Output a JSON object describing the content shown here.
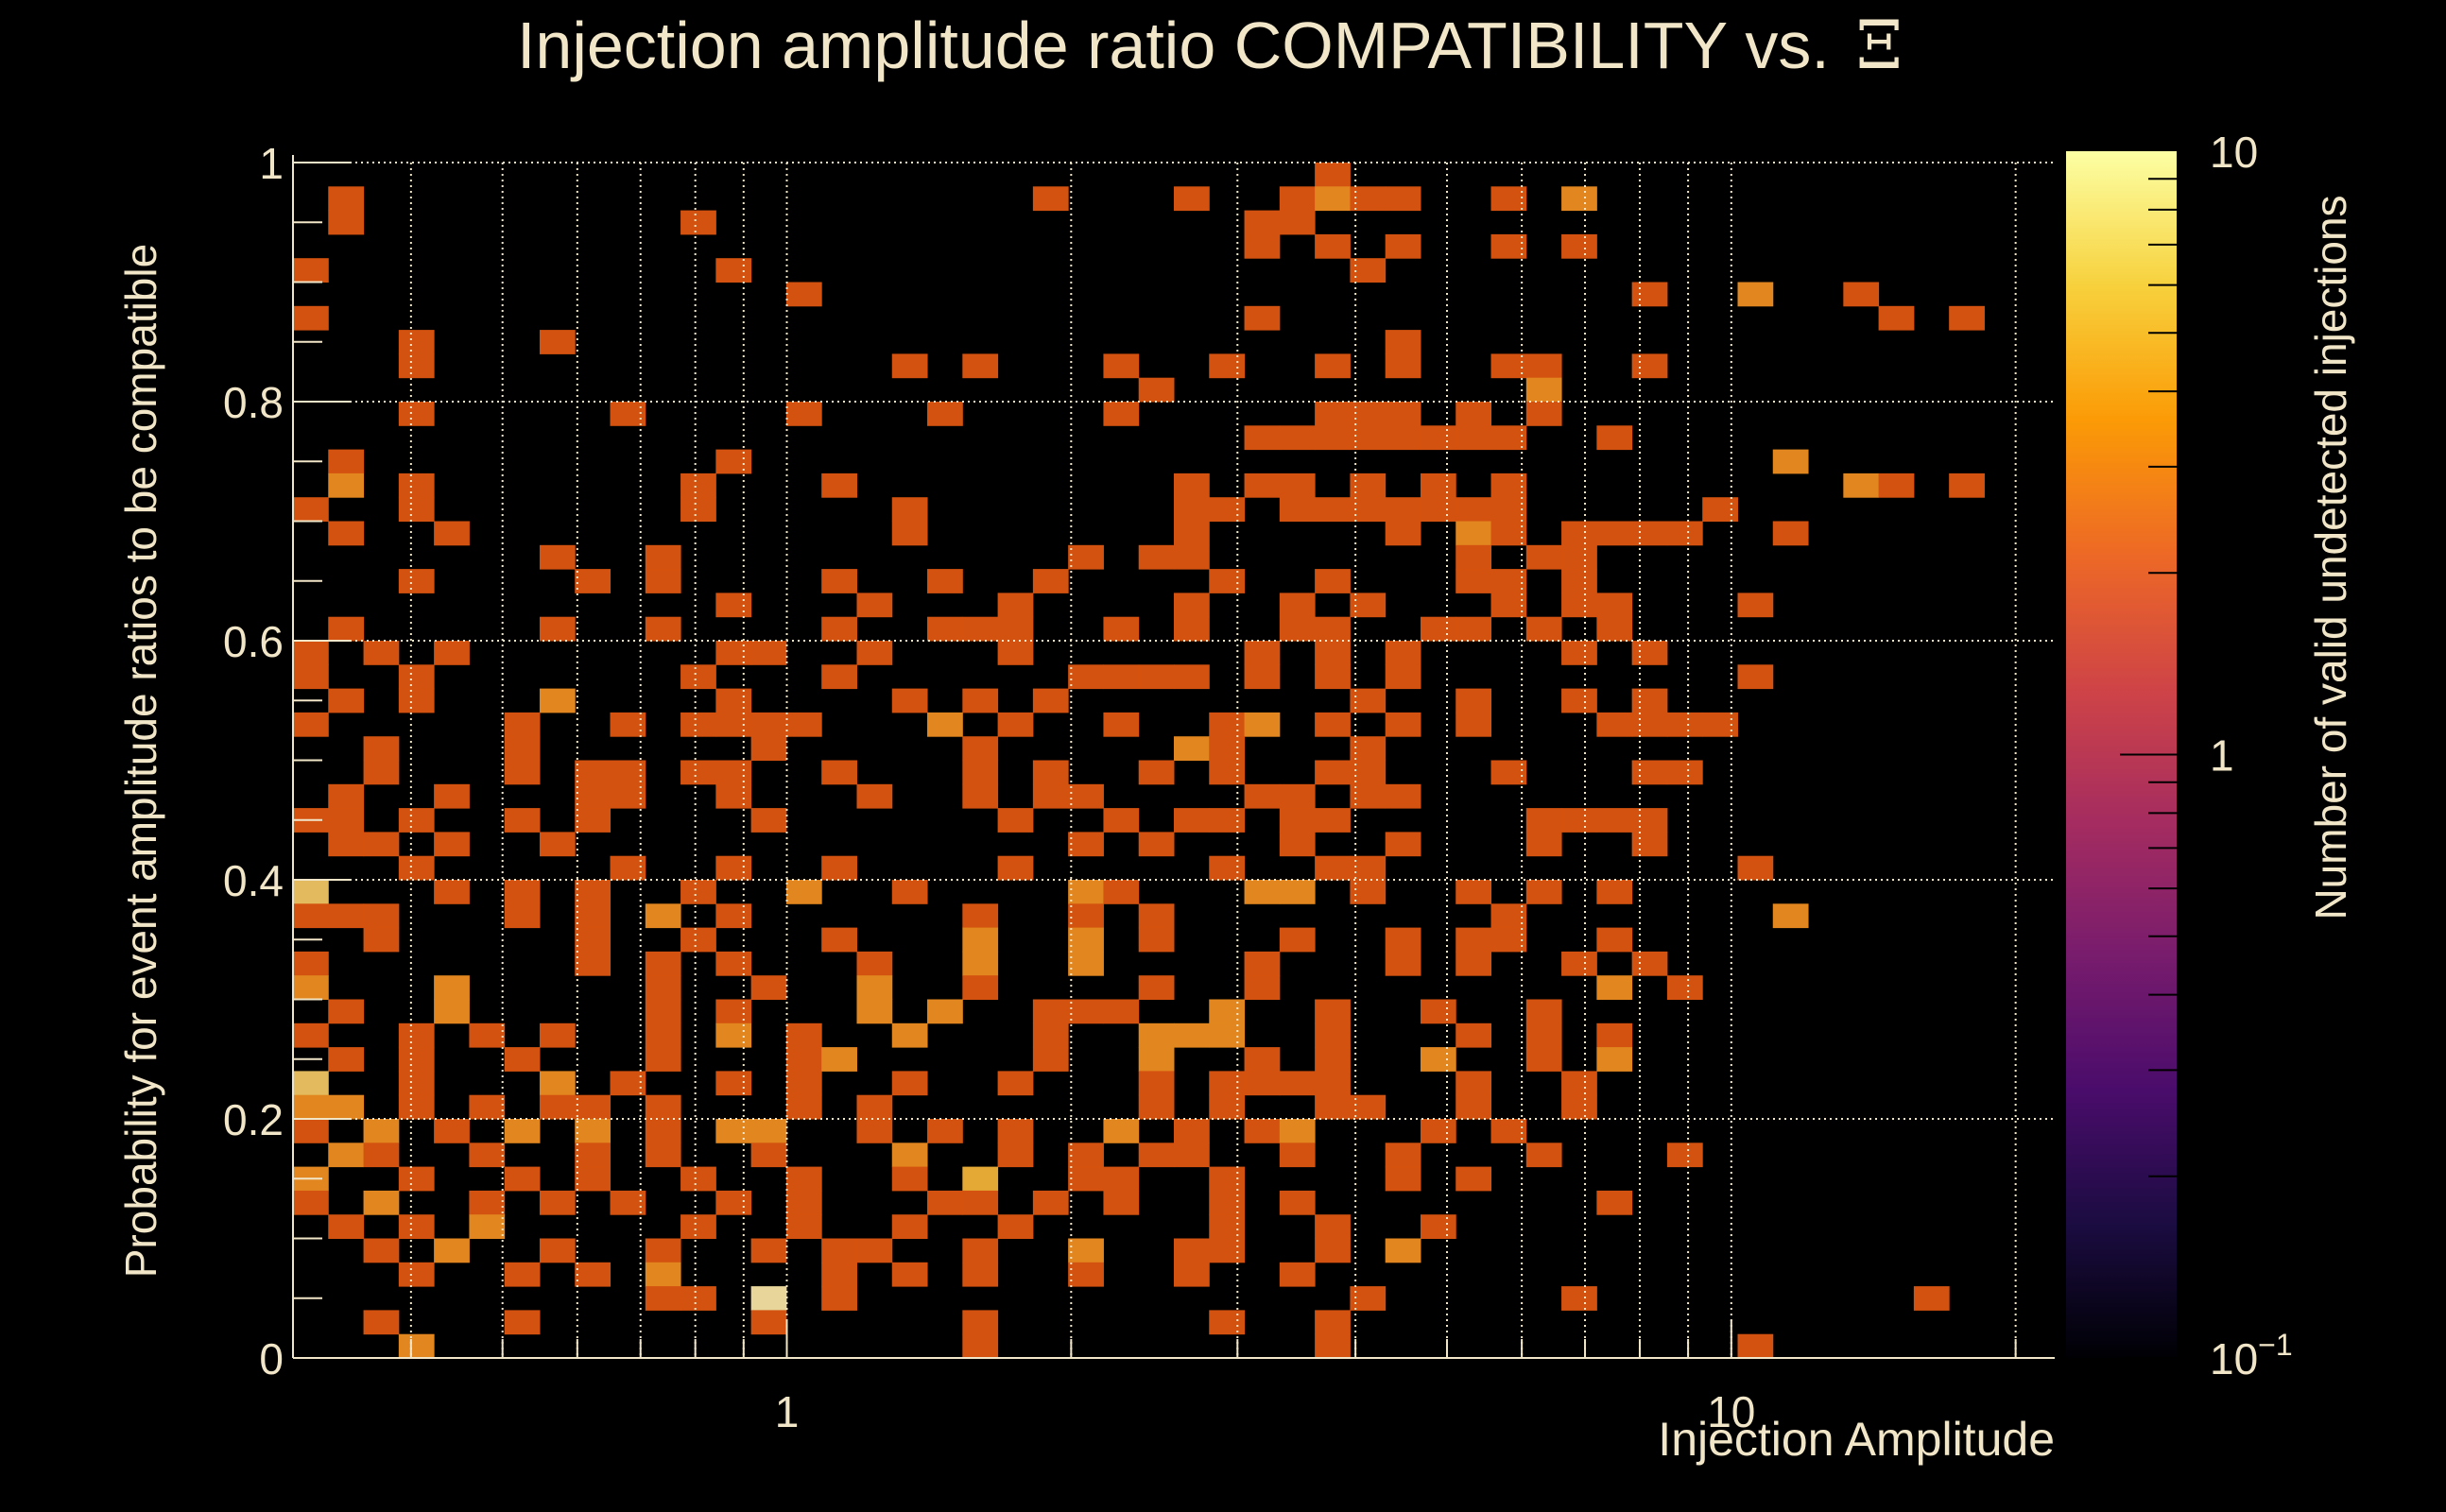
{
  "chart_data": {
    "type": "heatmap",
    "title": "Injection amplitude ratio COMPATIBILITY vs.",
    "title_symbol": "Ξ",
    "xlabel": "Injection Amplitude",
    "ylabel": "Probability for event amplitude ratios to be compatible",
    "colorbar_label": "Number of valid undetected injections",
    "x_scale": "log",
    "xlim": [
      0.3,
      22
    ],
    "ylim": [
      0,
      1
    ],
    "x_bins": 50,
    "y_bins": 50,
    "x_major_ticks": [
      {
        "value": 1,
        "label": "1"
      },
      {
        "value": 10,
        "label": "10"
      }
    ],
    "x_minor_ticks": [
      0.3,
      0.4,
      0.5,
      0.6,
      0.7,
      0.8,
      0.9,
      2,
      3,
      4,
      5,
      6,
      7,
      8,
      9,
      20
    ],
    "y_ticks": [
      {
        "value": 0,
        "label": "0"
      },
      {
        "value": 0.2,
        "label": "0.2"
      },
      {
        "value": 0.4,
        "label": "0.4"
      },
      {
        "value": 0.6,
        "label": "0.6"
      },
      {
        "value": 0.8,
        "label": "0.8"
      },
      {
        "value": 1,
        "label": "1"
      }
    ],
    "colorbar_scale": "log",
    "colorbar_range": [
      0.1,
      10
    ],
    "colorbar_ticks": [
      {
        "value": 10,
        "label": "10"
      },
      {
        "value": 1,
        "label": "1"
      },
      {
        "value": 0.1,
        "label": "10",
        "exponent": "−1"
      }
    ],
    "grid": true,
    "count_colors": {
      "1": "#d4520f",
      "2": "#e2871f",
      "3": "#e4a935",
      "4": "#e3bb5e",
      "5": "#e8d59a"
    },
    "colormap_stops": [
      "#000004",
      "#1b0c41",
      "#4a0c6b",
      "#781c6d",
      "#a52c60",
      "#cf4446",
      "#ed6925",
      "#fb9b06",
      "#f7d13d",
      "#fcffa4"
    ],
    "rows_top_to_bottom": [
      ".............................1....................",
      ".1...................1...1..1211..1.2..............",
      ".1.........1...............11.....................",
      "...........................1.1.1..1.1.............",
      "1...........1.................1...................",
      "..............1.......................1..2..1.....",
      "1..........................1.................1.1..",
      "...1...1.......................1..................",
      "...1.............1.1...1..1..1.1..11..1...........",
      "........................1..........2..............",
      "...1.....1....1...1....1.....111.1.1..............",
      "...........................11111111..1.........",
      ".1..........1.............................2.......",
      ".2.1.......1...1.........1.11.1.1.1.........21.1..",
      "1..1.......1.....1.......11.1111111.....1.........",
      ".1..1............1.......1.....1.21.1111..1.......",
      ".......1..1...........1.11.......1.11.............",
      "...1....1.1....1..1..1....1..1...11.1..............",
      "............1...1...1....1..1.1...1.11...1........",
      ".1.....1..1....1..111..1.1..11..11.1.1.........",
      "1.1.1.......11..1...1......1.1.1....1.1........",
      "1..1.......1...1......1111.1.1.1.........1........",
      ".1.1...2....1....1.1.1........1..1..1.1.........",
      "1.....1..1.1111...2.1..1..12.1.1.1...1111........",
      "..1...1......1.....1.....21...1...................",
      "..1...1.11.11..1...1.1..1.1..11...1...11..........",
      ".1..1...11..1...1..1.11....11.11..................",
      "11.1..1.1....1......1..1.11.11.....1111...........",
      ".11.1..1..............1.1...1..1...1..1..........",
      "...1.....1..1..1....1.....1..11..........1.......",
      "4...1.1.1..1..2..1....21...22.1..1.1.1..............",
      "111...1.1.2.1......1..1.1.........1.......2.......",
      "..1.....1..1...1...2..2.1...1..1.11..1............",
      "1.......1.1.1...1..2..2....1...1.1..1.1...........",
      "2...2.....1..1..2..1....1..1.........2.1..........",
      ".1..2.....1.1...2.2..111..2..1..1..1...........",
      "1..1.1.1..1.2.1..2...1..222..1...1.1.1.........",
      ".1.1..1...1...12.....1..2..1.1..2..1.2.........",
      "4..1...2.1..1.1..1..1...1.1111...1..1...........",
      "22.1.1.11.1...1.1.......1.1..11..1..1.........",
      "1.2.1.2.2.1.22..1.1.1..2.1.12...1.1..........",
      ".21..1..1.1..1...2..1.1.11..1..1...1...1.........",
      "2..1..1.1..1..1..1.3..11..1....1.1.............",
      "1.2..1.1.1..1.1...11.1.1..1.1........1........",
      ".1.1.2.....1..1..1..1.....1..1..1...............",
      "..1.2..1..1..1.11..1..2..11..1.2..............",
      "...1..1.1.2....1.1.1..1..1..1......................",
      "..........11.5.1..............1.....1.........1....",
      "..1...1......1.....1......1..1.........................",
      "...2...............1.........1...........1......."
    ]
  }
}
